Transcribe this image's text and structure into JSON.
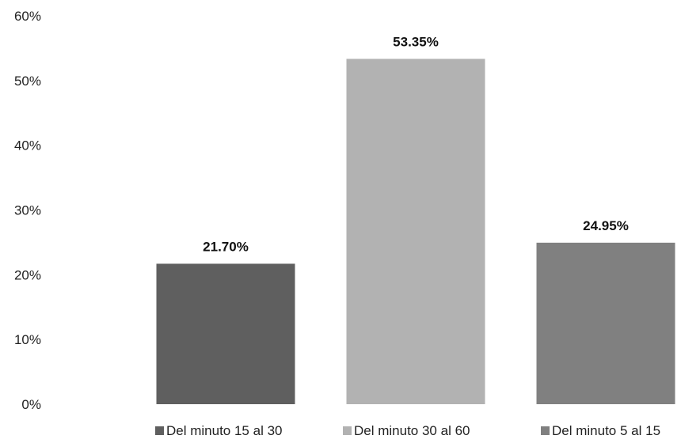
{
  "chart_data": {
    "type": "bar",
    "categories": [
      "Del minuto 15 al 30",
      "Del minuto 30 al 60",
      "Del minuto 5 al 15"
    ],
    "values": [
      21.7,
      53.35,
      24.95
    ],
    "data_labels": [
      "21.70%",
      "53.35%",
      "24.95%"
    ],
    "colors": [
      "#5f5f5f",
      "#b2b2b2",
      "#808080"
    ],
    "ylim": [
      0,
      60
    ],
    "yticks": [
      0,
      10,
      20,
      30,
      40,
      50,
      60
    ],
    "ytick_labels": [
      "0%",
      "10%",
      "20%",
      "30%",
      "40%",
      "50%",
      "60%"
    ],
    "title": "",
    "xlabel": "",
    "ylabel": "",
    "grid": false,
    "legend_position": "bottom"
  }
}
